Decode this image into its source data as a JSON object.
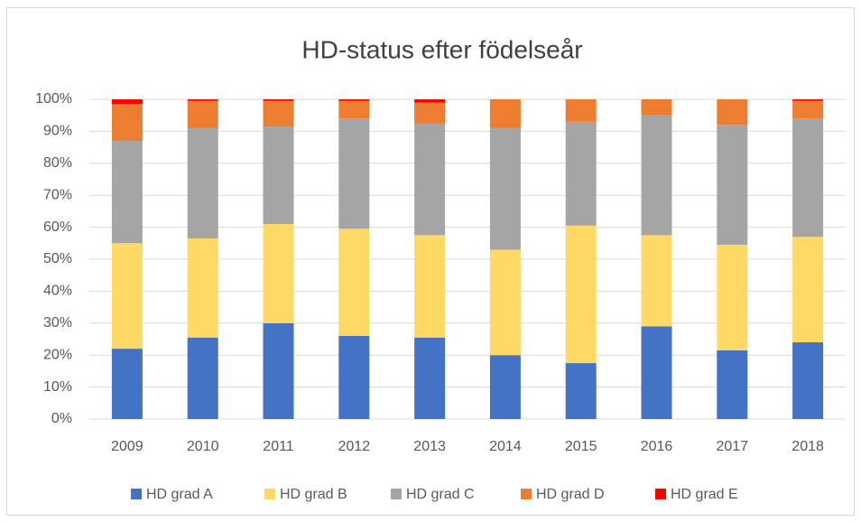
{
  "chart_data": {
    "type": "stacked_bar",
    "title": "HD-status efter födelseår",
    "categories": [
      "2009",
      "2010",
      "2011",
      "2012",
      "2013",
      "2014",
      "2015",
      "2016",
      "2017",
      "2018"
    ],
    "series": [
      {
        "name": "HD grad A",
        "color": "#4472c4",
        "values": [
          22,
          25.5,
          30,
          26,
          25.5,
          20,
          17.5,
          29,
          21.5,
          24
        ]
      },
      {
        "name": "HD grad B",
        "color": "#ffd966",
        "values": [
          33,
          31,
          31,
          33.5,
          32,
          33,
          43,
          28.5,
          33,
          33
        ]
      },
      {
        "name": "HD grad C",
        "color": "#a5a5a5",
        "values": [
          32,
          34.5,
          30.5,
          34.5,
          35,
          38,
          32.5,
          37.5,
          37.5,
          37
        ]
      },
      {
        "name": "HD grad D",
        "color": "#ed7d31",
        "values": [
          11.5,
          8.5,
          8,
          5.5,
          6.5,
          9,
          7,
          5,
          8,
          5.5
        ]
      },
      {
        "name": "HD grad E",
        "color": "#ff0000",
        "values": [
          1.5,
          0.5,
          0.5,
          0.5,
          1,
          0,
          0,
          0,
          0,
          0.5
        ]
      }
    ],
    "ylim": [
      0,
      100
    ],
    "yticks": [
      {
        "value": 0,
        "label": "0%"
      },
      {
        "value": 10,
        "label": "10%"
      },
      {
        "value": 20,
        "label": "20%"
      },
      {
        "value": 30,
        "label": "30%"
      },
      {
        "value": 40,
        "label": "40%"
      },
      {
        "value": 50,
        "label": "50%"
      },
      {
        "value": 60,
        "label": "60%"
      },
      {
        "value": 70,
        "label": "70%"
      },
      {
        "value": 80,
        "label": "80%"
      },
      {
        "value": 90,
        "label": "90%"
      },
      {
        "value": 100,
        "label": "100%"
      }
    ],
    "grid": true,
    "legend": "bottom"
  }
}
